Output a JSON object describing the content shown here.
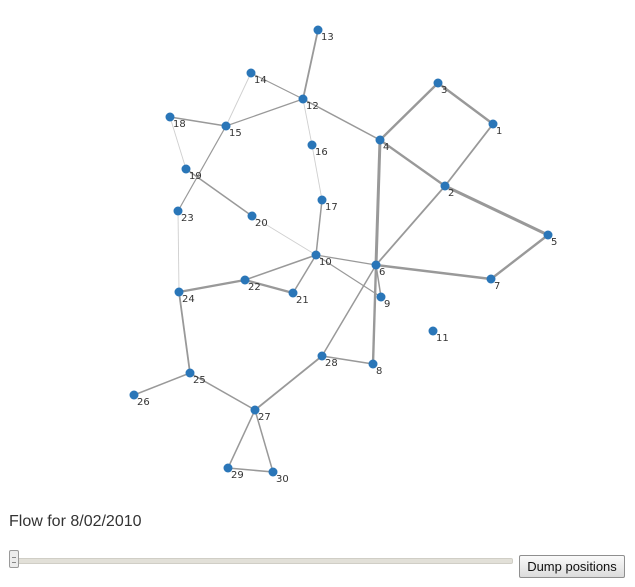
{
  "flow": {
    "label": "Flow for 8/02/2010"
  },
  "slider": {
    "value_fraction": 0.0
  },
  "buttons": {
    "dump_positions": "Dump positions"
  },
  "colors": {
    "node": "#2a76b8",
    "edge": "#999999",
    "background": "#ffffff"
  },
  "graph": {
    "nodes": [
      {
        "id": "1"
      },
      {
        "id": "2"
      },
      {
        "id": "3"
      },
      {
        "id": "4"
      },
      {
        "id": "5"
      },
      {
        "id": "6"
      },
      {
        "id": "7"
      },
      {
        "id": "8"
      },
      {
        "id": "9"
      },
      {
        "id": "10"
      },
      {
        "id": "11"
      },
      {
        "id": "12"
      },
      {
        "id": "13"
      },
      {
        "id": "14"
      },
      {
        "id": "15"
      },
      {
        "id": "16"
      },
      {
        "id": "17"
      },
      {
        "id": "18"
      },
      {
        "id": "19"
      },
      {
        "id": "20"
      },
      {
        "id": "21"
      },
      {
        "id": "22"
      },
      {
        "id": "23"
      },
      {
        "id": "24"
      },
      {
        "id": "25"
      },
      {
        "id": "26"
      },
      {
        "id": "27"
      },
      {
        "id": "28"
      },
      {
        "id": "29"
      },
      {
        "id": "30"
      }
    ],
    "edges": [
      {
        "source": "13",
        "target": "12",
        "weight": 2
      },
      {
        "source": "12",
        "target": "14",
        "weight": 1
      },
      {
        "source": "12",
        "target": "15",
        "weight": 1
      },
      {
        "source": "12",
        "target": "4",
        "weight": 1.5
      },
      {
        "source": "12",
        "target": "16",
        "weight": 0.5
      },
      {
        "source": "14",
        "target": "15",
        "weight": 0.5
      },
      {
        "source": "18",
        "target": "15",
        "weight": 1.5
      },
      {
        "source": "18",
        "target": "19",
        "weight": 0.5
      },
      {
        "source": "15",
        "target": "23",
        "weight": 1
      },
      {
        "source": "19",
        "target": "20",
        "weight": 1.5
      },
      {
        "source": "23",
        "target": "24",
        "weight": 0.5
      },
      {
        "source": "20",
        "target": "10",
        "weight": 0.5
      },
      {
        "source": "16",
        "target": "17",
        "weight": 0.5
      },
      {
        "source": "17",
        "target": "10",
        "weight": 1.5
      },
      {
        "source": "10",
        "target": "22",
        "weight": 1.5
      },
      {
        "source": "10",
        "target": "21",
        "weight": 1.5
      },
      {
        "source": "10",
        "target": "6",
        "weight": 1
      },
      {
        "source": "10",
        "target": "9",
        "weight": 1
      },
      {
        "source": "22",
        "target": "21",
        "weight": 3
      },
      {
        "source": "22",
        "target": "24",
        "weight": 3
      },
      {
        "source": "24",
        "target": "25",
        "weight": 2
      },
      {
        "source": "25",
        "target": "26",
        "weight": 1.5
      },
      {
        "source": "25",
        "target": "27",
        "weight": 1.5
      },
      {
        "source": "27",
        "target": "28",
        "weight": 2
      },
      {
        "source": "27",
        "target": "29",
        "weight": 1.5
      },
      {
        "source": "27",
        "target": "30",
        "weight": 1.5
      },
      {
        "source": "29",
        "target": "30",
        "weight": 1.5
      },
      {
        "source": "28",
        "target": "6",
        "weight": 1.5
      },
      {
        "source": "28",
        "target": "8",
        "weight": 1.5
      },
      {
        "source": "6",
        "target": "8",
        "weight": 3
      },
      {
        "source": "6",
        "target": "9",
        "weight": 1.5
      },
      {
        "source": "6",
        "target": "4",
        "weight": 4
      },
      {
        "source": "6",
        "target": "2",
        "weight": 2
      },
      {
        "source": "6",
        "target": "7",
        "weight": 3
      },
      {
        "source": "4",
        "target": "3",
        "weight": 3
      },
      {
        "source": "4",
        "target": "2",
        "weight": 3
      },
      {
        "source": "3",
        "target": "1",
        "weight": 3
      },
      {
        "source": "1",
        "target": "2",
        "weight": 2
      },
      {
        "source": "2",
        "target": "5",
        "weight": 4
      },
      {
        "source": "5",
        "target": "7",
        "weight": 3
      }
    ]
  }
}
